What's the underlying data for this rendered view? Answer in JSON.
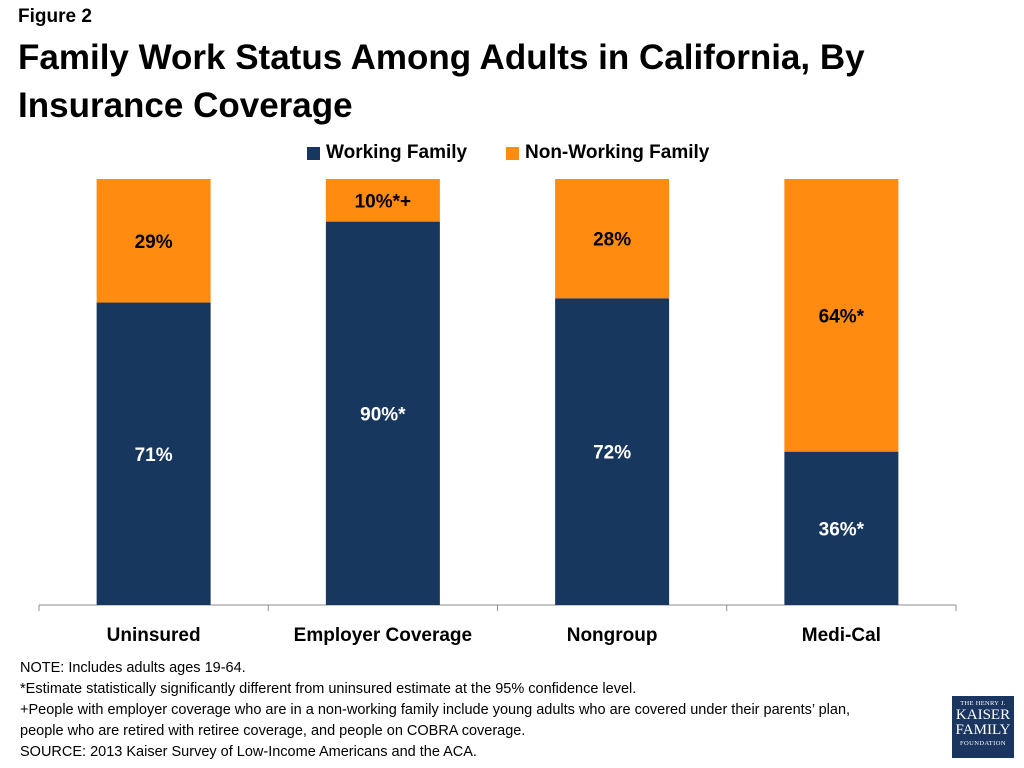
{
  "figure_label": "Figure 2",
  "title": "Family Work Status Among Adults in California, By Insurance Coverage",
  "chart_data": {
    "type": "bar",
    "stacked": true,
    "categories": [
      "Uninsured",
      "Employer Coverage",
      "Nongroup",
      "Medi-Cal"
    ],
    "series": [
      {
        "name": "Working Family",
        "color": "#17375e",
        "values": [
          71,
          90,
          72,
          36
        ],
        "labels": [
          "71%",
          "90%*",
          "72%",
          "36%*"
        ]
      },
      {
        "name": "Non-Working Family",
        "color": "#ff8c11",
        "values": [
          29,
          10,
          28,
          64
        ],
        "labels": [
          "29%",
          "10%*+",
          "28%",
          "64%*"
        ]
      }
    ],
    "ylim": [
      0,
      100
    ],
    "legend_position": "top-center",
    "grid": false
  },
  "notes": [
    "NOTE: Includes adults ages 19-64.",
    "*Estimate statistically significantly different from uninsured estimate  at the 95% confidence level.",
    "+People with employer coverage who are in a non-working family include young adults who are covered under their parents’ plan,",
    "people who are retired with retiree coverage, and people on COBRA coverage.",
    "SOURCE: 2013 Kaiser Survey of Low-Income Americans and the ACA."
  ],
  "logo": {
    "line1": "THE HENRY J.",
    "line2": "KAISER",
    "line3": "FAMILY",
    "line4": "FOUNDATION"
  }
}
